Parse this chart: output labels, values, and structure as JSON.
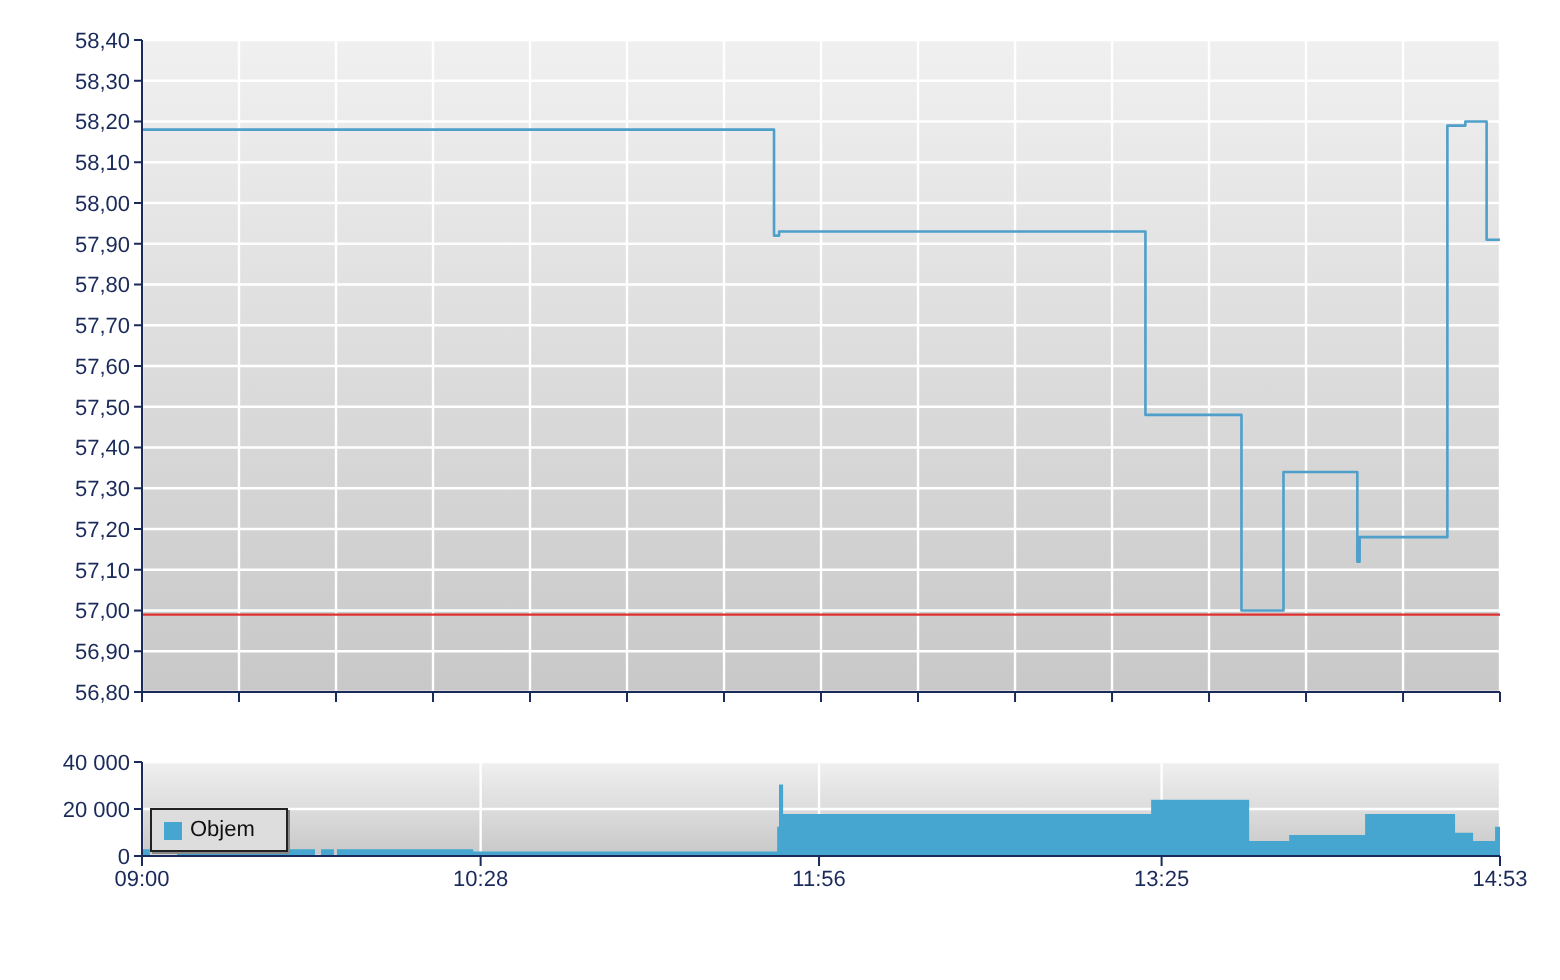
{
  "chart_data": [
    {
      "type": "step",
      "xlim": [
        9,
        14.883
      ],
      "xticks": [
        {
          "value": 9,
          "label": null
        },
        {
          "value": 9.4202,
          "label": null
        },
        {
          "value": 9.8405,
          "label": null
        },
        {
          "value": 10.2607,
          "label": null
        },
        {
          "value": 10.6809,
          "label": null
        },
        {
          "value": 11.1011,
          "label": null
        },
        {
          "value": 11.5214,
          "label": null
        },
        {
          "value": 11.9416,
          "label": null
        },
        {
          "value": 12.3618,
          "label": null
        },
        {
          "value": 12.7821,
          "label": null
        },
        {
          "value": 13.2023,
          "label": null
        },
        {
          "value": 13.6225,
          "label": null
        },
        {
          "value": 14.0427,
          "label": null
        },
        {
          "value": 14.463,
          "label": null
        },
        {
          "value": 14.883,
          "label": null
        }
      ],
      "ylim": [
        56.8,
        58.4
      ],
      "yticks": [
        {
          "value": 56.8,
          "label": "56,80"
        },
        {
          "value": 56.9,
          "label": "56,90"
        },
        {
          "value": 57.0,
          "label": "57,00"
        },
        {
          "value": 57.1,
          "label": "57,10"
        },
        {
          "value": 57.2,
          "label": "57,20"
        },
        {
          "value": 57.3,
          "label": "57,30"
        },
        {
          "value": 57.4,
          "label": "57,40"
        },
        {
          "value": 57.5,
          "label": "57,50"
        },
        {
          "value": 57.6,
          "label": "57,60"
        },
        {
          "value": 57.7,
          "label": "57,70"
        },
        {
          "value": 57.8,
          "label": "57,80"
        },
        {
          "value": 57.9,
          "label": "57,90"
        },
        {
          "value": 58.0,
          "label": "58,00"
        },
        {
          "value": 58.1,
          "label": "58,10"
        },
        {
          "value": 58.2,
          "label": "58,20"
        },
        {
          "value": 58.3,
          "label": "58,30"
        },
        {
          "value": 58.4,
          "label": "58,40"
        }
      ],
      "tick_labels": "y",
      "grid": true,
      "ref_lines": [
        {
          "axis": "y",
          "value": 56.99,
          "color": "#e03030"
        }
      ],
      "series": [
        {
          "color": "#4e9fc9",
          "x": [
            9,
            11.738,
            11.76,
            13.347,
            13.763,
            13.945,
            14.265,
            14.275,
            14.655,
            14.733,
            14.825,
            14.883
          ],
          "values": [
            58.18,
            57.92,
            57.93,
            57.48,
            57.0,
            57.34,
            57.12,
            57.18,
            58.19,
            58.2,
            57.91,
            57.91
          ]
        }
      ]
    },
    {
      "type": "area",
      "xlim": [
        9,
        14.883
      ],
      "xticks": [
        {
          "value": 9,
          "label": "09:00"
        },
        {
          "value": 10.467,
          "label": "10:28"
        },
        {
          "value": 11.933,
          "label": "11:56"
        },
        {
          "value": 13.417,
          "label": "13:25"
        },
        {
          "value": 14.883,
          "label": "14:53"
        }
      ],
      "ylim": [
        0,
        40000
      ],
      "yticks": [
        {
          "value": 0,
          "label": "0"
        },
        {
          "value": 20000,
          "label": "20 000"
        },
        {
          "value": 40000,
          "label": "40 000"
        }
      ],
      "grid": true,
      "legend": "left",
      "series": [
        {
          "name": "Objem",
          "color": "#46a6cf",
          "x": [
            9,
            9.03,
            9.156,
            9.745,
            9.78,
            9.827,
            9.849,
            10.43,
            11.756,
            11.764,
            11.773,
            13.376,
            13.792,
            13.974,
            14.303,
            14.684,
            14.762,
            14.866,
            14.883
          ],
          "values": [
            2500,
            0,
            2500,
            0,
            2500,
            0,
            2500,
            1500,
            12000,
            30000,
            17500,
            23500,
            6000,
            8500,
            17500,
            9500,
            6000,
            12000,
            12000
          ]
        }
      ]
    }
  ]
}
